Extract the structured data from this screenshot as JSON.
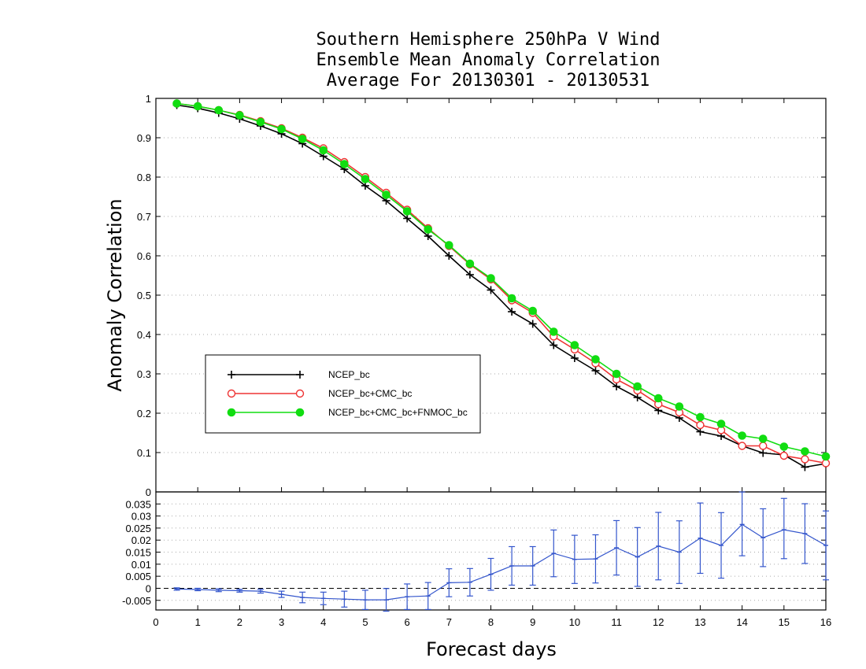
{
  "chart_data": [
    {
      "type": "line",
      "title": [
        "Southern Hemisphere 250hPa V Wind",
        "Ensemble Mean Anomaly Correlation",
        "Average For 20130301 - 20130531"
      ],
      "xlabel": "Forecast days",
      "ylabel": "Anomaly Correlation",
      "xlim": [
        0,
        16
      ],
      "ylim": [
        0,
        1
      ],
      "x_ticks": [
        0,
        1,
        2,
        3,
        4,
        5,
        6,
        7,
        8,
        9,
        10,
        11,
        12,
        13,
        14,
        15,
        16
      ],
      "y_ticks": [
        0,
        0.1,
        0.2,
        0.3,
        0.4,
        0.5,
        0.6,
        0.7,
        0.8,
        0.9,
        1
      ],
      "y_tick_labels": [
        "0",
        "0.1",
        "0.2",
        "0.3",
        "0.4",
        "0.5",
        "0.6",
        "0.7",
        "0.8",
        "0.9",
        "1"
      ],
      "grid": "horizontal dotted",
      "legend_position": "left-middle",
      "x": [
        0.5,
        1,
        1.5,
        2,
        2.5,
        3,
        3.5,
        4,
        4.5,
        5,
        5.5,
        6,
        6.5,
        7,
        7.5,
        8,
        8.5,
        9,
        9.5,
        10,
        10.5,
        11,
        11.5,
        12,
        12.5,
        13,
        13.5,
        14,
        14.5,
        15,
        15.5,
        16
      ],
      "series": [
        {
          "name": "NCEP_bc",
          "color": "#000000",
          "marker": "plus",
          "values": [
            0.983,
            0.975,
            0.963,
            0.948,
            0.93,
            0.91,
            0.885,
            0.853,
            0.82,
            0.778,
            0.74,
            0.695,
            0.65,
            0.6,
            0.552,
            0.513,
            0.458,
            0.427,
            0.373,
            0.34,
            0.308,
            0.268,
            0.24,
            0.207,
            0.188,
            0.153,
            0.142,
            0.117,
            0.099,
            0.094,
            0.063,
            0.072
          ]
        },
        {
          "name": "NCEP_bc+CMC_bc",
          "color": "#ee3333",
          "marker": "open-circle",
          "values": [
            0.987,
            0.98,
            0.97,
            0.958,
            0.942,
            0.924,
            0.9,
            0.873,
            0.838,
            0.8,
            0.76,
            0.717,
            0.67,
            0.625,
            0.578,
            0.54,
            0.487,
            0.455,
            0.395,
            0.362,
            0.327,
            0.286,
            0.258,
            0.223,
            0.202,
            0.17,
            0.157,
            0.117,
            0.117,
            0.092,
            0.083,
            0.073
          ]
        },
        {
          "name": "NCEP_bc+CMC_bc+FNMOC_bc",
          "color": "#11dd11",
          "marker": "filled-circle",
          "values": [
            0.987,
            0.98,
            0.97,
            0.957,
            0.94,
            0.922,
            0.897,
            0.868,
            0.833,
            0.795,
            0.755,
            0.713,
            0.667,
            0.627,
            0.58,
            0.543,
            0.492,
            0.46,
            0.407,
            0.373,
            0.337,
            0.3,
            0.268,
            0.238,
            0.217,
            0.19,
            0.173,
            0.143,
            0.135,
            0.115,
            0.103,
            0.09
          ]
        }
      ]
    },
    {
      "type": "line",
      "xlabel": "Forecast days",
      "xlim": [
        0,
        16
      ],
      "ylim": [
        -0.009,
        0.04
      ],
      "y_ticks": [
        -0.005,
        0,
        0.005,
        0.01,
        0.015,
        0.02,
        0.025,
        0.03,
        0.035
      ],
      "y_tick_labels": [
        "-0.005",
        "0",
        "0.005",
        "0.01",
        "0.015",
        "0.02",
        "0.025",
        "0.03",
        "0.035"
      ],
      "grid": "horizontal dotted",
      "x": [
        0.5,
        1,
        1.5,
        2,
        2.5,
        3,
        3.5,
        4,
        4.5,
        5,
        5.5,
        6,
        6.5,
        7,
        7.5,
        8,
        8.5,
        9,
        9.5,
        10,
        10.5,
        11,
        11.5,
        12,
        12.5,
        13,
        13.5,
        14,
        14.5,
        15,
        15.5,
        16
      ],
      "series": [
        {
          "color": "#3355cc",
          "values": [
            -0.0003,
            -0.0005,
            -0.0008,
            -0.001,
            -0.0012,
            -0.0025,
            -0.0038,
            -0.0042,
            -0.0045,
            -0.0048,
            -0.0048,
            -0.0035,
            -0.0032,
            0.0023,
            0.0025,
            0.0058,
            0.0093,
            0.0093,
            0.0145,
            0.012,
            0.0122,
            0.0168,
            0.013,
            0.0175,
            0.015,
            0.0208,
            0.0178,
            0.0265,
            0.021,
            0.0243,
            0.0227,
            0.0178
          ],
          "error_low": [
            -0.0008,
            -0.001,
            -0.0014,
            -0.0016,
            -0.002,
            -0.0038,
            -0.006,
            -0.0068,
            -0.0078,
            -0.0088,
            -0.0095,
            -0.0088,
            -0.0088,
            -0.0035,
            -0.0032,
            -0.0008,
            0.0013,
            0.0013,
            0.0048,
            0.002,
            0.0022,
            0.0055,
            0.0008,
            0.0035,
            0.002,
            0.0062,
            0.0042,
            0.0135,
            0.009,
            0.0123,
            0.0103,
            0.0035
          ],
          "error_high": [
            0.0002,
            0.0,
            -0.0002,
            -0.0004,
            -0.0004,
            -0.0012,
            -0.0016,
            -0.0016,
            -0.0012,
            -0.0008,
            -0.0001,
            0.0018,
            0.0024,
            0.0081,
            0.0082,
            0.0124,
            0.0173,
            0.0173,
            0.0242,
            0.022,
            0.0222,
            0.0281,
            0.0252,
            0.0315,
            0.028,
            0.0354,
            0.0314,
            0.04,
            0.033,
            0.0373,
            0.0351,
            0.0321
          ]
        }
      ]
    }
  ]
}
